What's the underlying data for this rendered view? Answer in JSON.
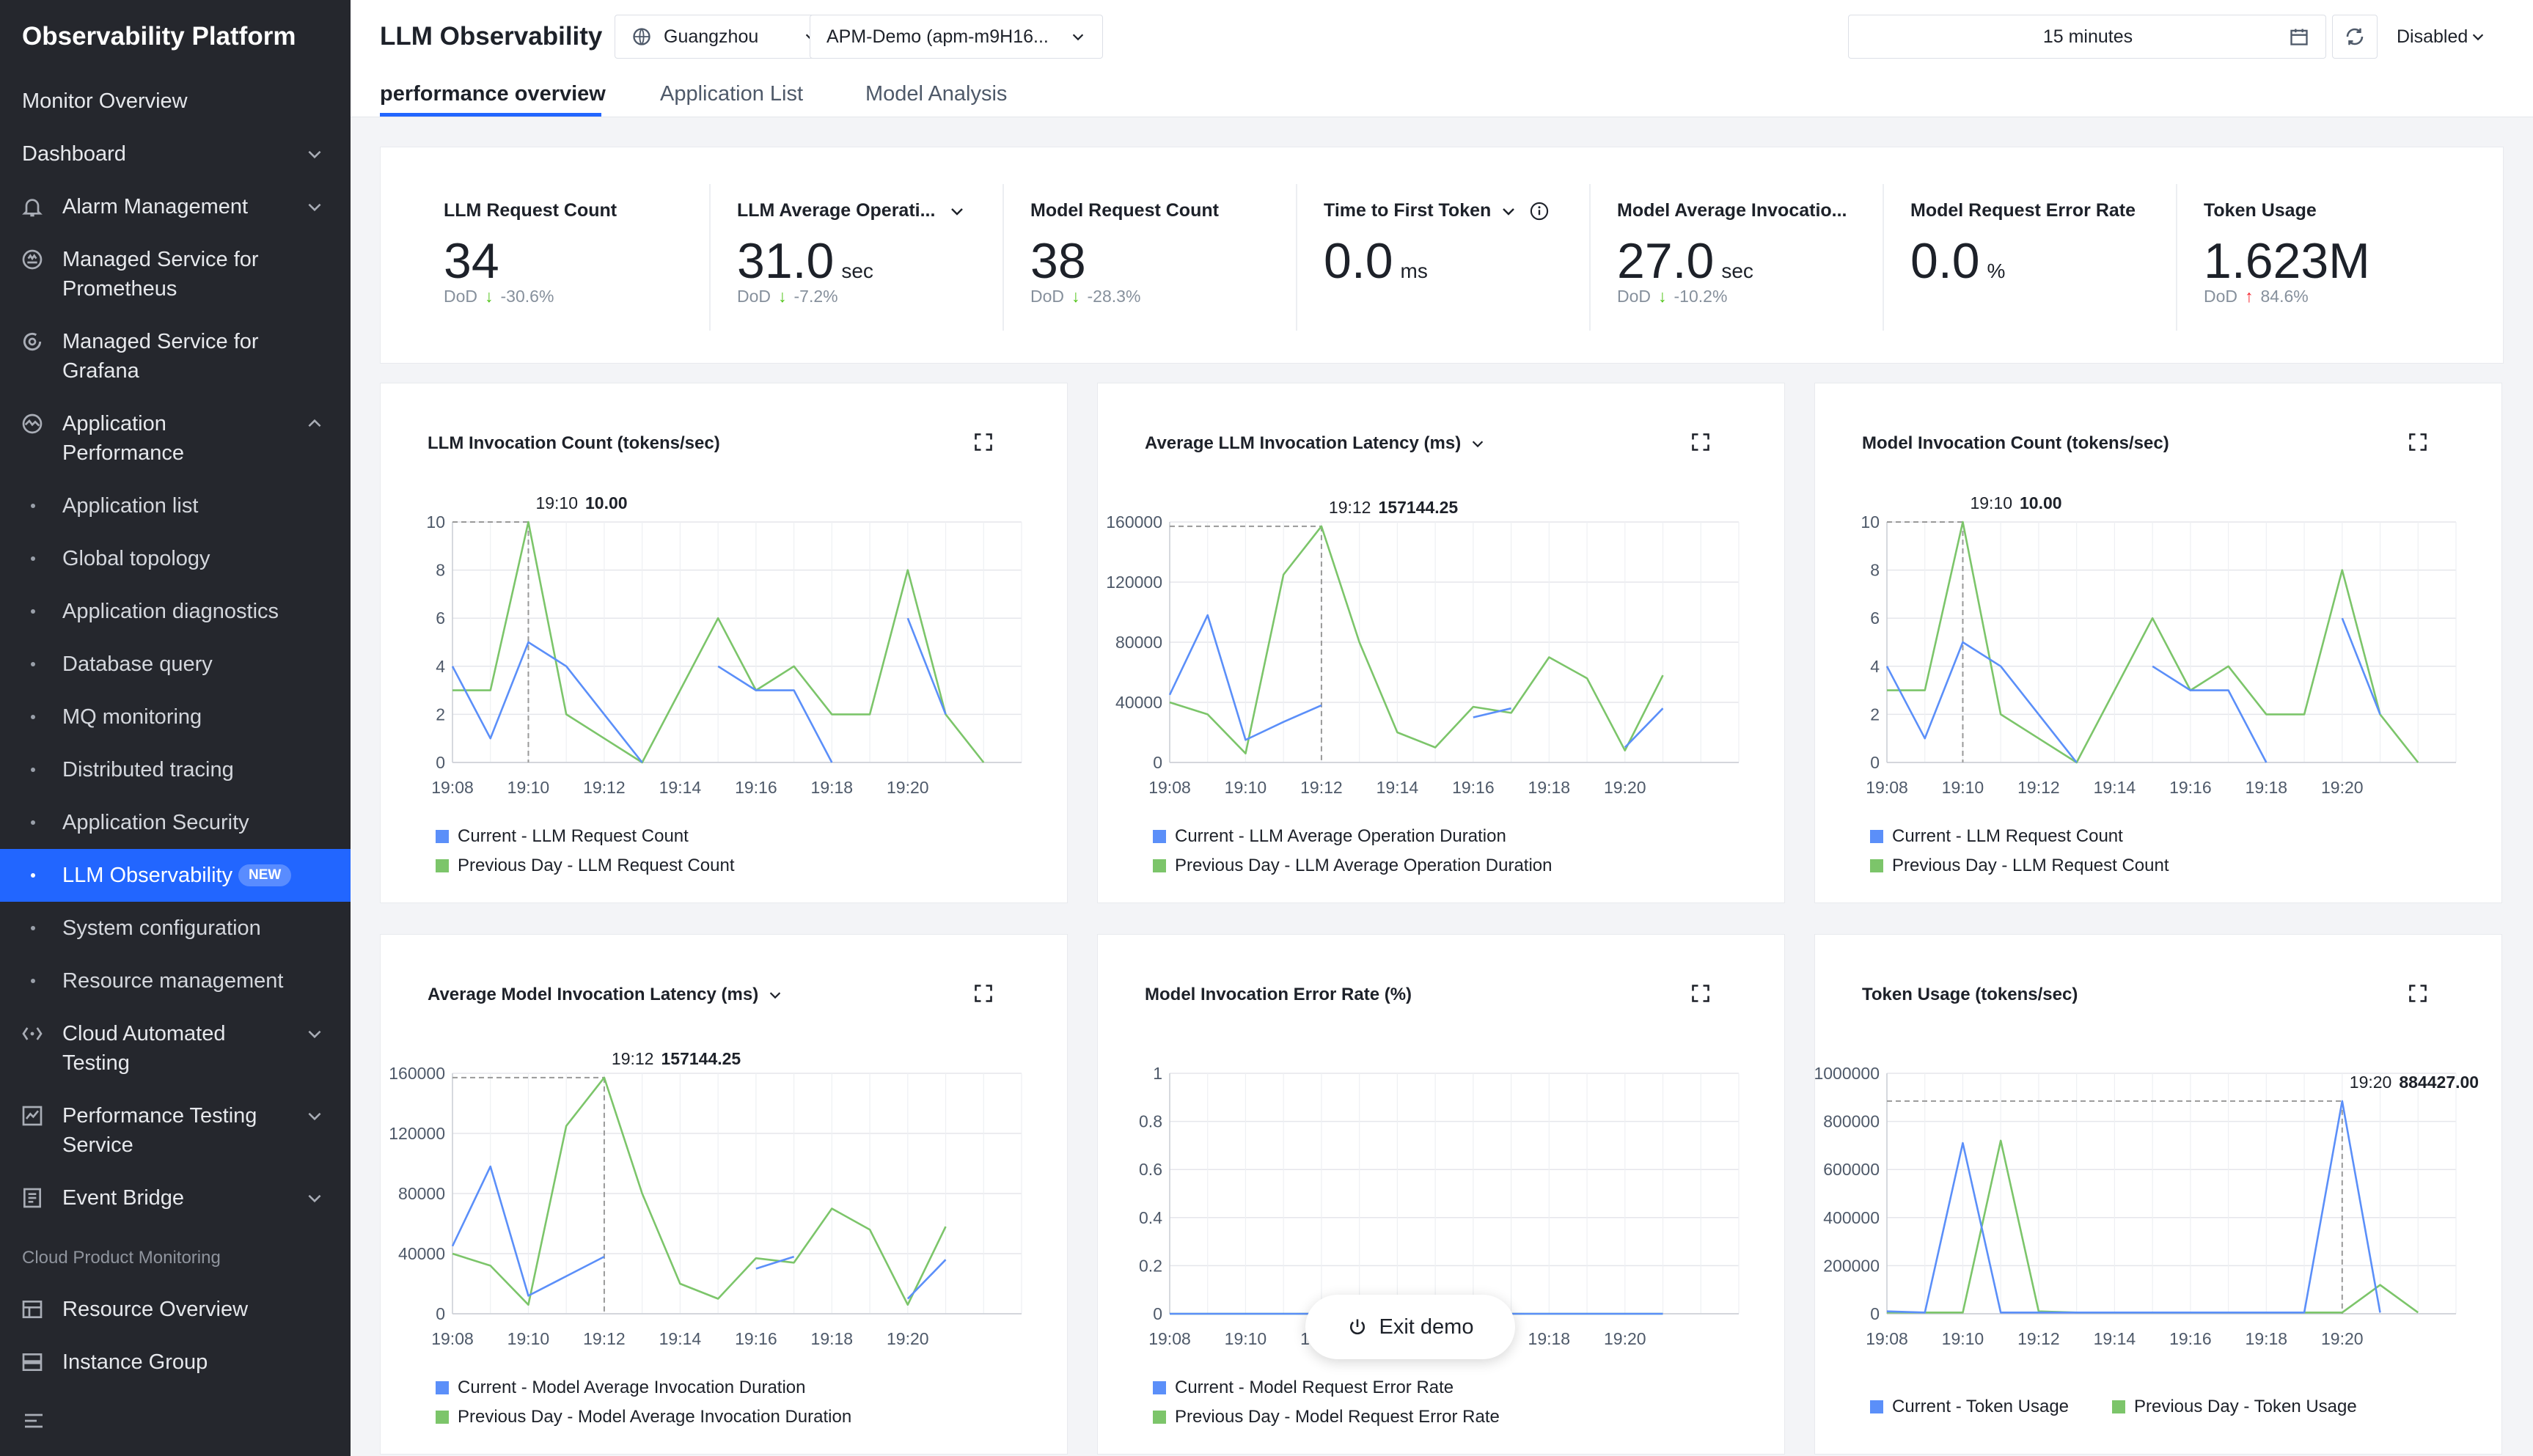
{
  "sidebar": {
    "brand": "Observability Platform",
    "items": [
      {
        "label": "Monitor Overview"
      },
      {
        "label": "Dashboard"
      },
      {
        "label": "Alarm Management"
      },
      {
        "label": "Managed Service for",
        "label2": "Prometheus"
      },
      {
        "label": "Managed Service for",
        "label2": "Grafana"
      },
      {
        "label": "Application",
        "label2": "Performance"
      }
    ],
    "sub_items": [
      {
        "label": "Application list"
      },
      {
        "label": "Global topology"
      },
      {
        "label": "Application diagnostics"
      },
      {
        "label": "Database query"
      },
      {
        "label": "MQ monitoring"
      },
      {
        "label": "Distributed tracing"
      },
      {
        "label": "Application Security"
      },
      {
        "label": "LLM Observability",
        "badge": "NEW"
      },
      {
        "label": "System configuration"
      },
      {
        "label": "Resource management"
      }
    ],
    "lower_items": [
      {
        "label": "Cloud Automated",
        "label2": "Testing"
      },
      {
        "label": "Performance Testing",
        "label2": "Service"
      },
      {
        "label": "Event Bridge"
      }
    ],
    "section_label": "Cloud Product Monitoring",
    "monitoring_items": [
      {
        "label": "Resource Overview"
      },
      {
        "label": "Instance Group"
      }
    ]
  },
  "header": {
    "title": "LLM Observability",
    "region": "Guangzhou",
    "app": "APM-Demo (apm-m9H16...",
    "time_range": "15 minutes",
    "refresh_mode": "Disabled"
  },
  "tabs": [
    {
      "label": "performance overview"
    },
    {
      "label": "Application List"
    },
    {
      "label": "Model Analysis"
    }
  ],
  "kpis": [
    {
      "label": "LLM Request Count",
      "value": "34",
      "unit": "",
      "dod_label": "DoD",
      "dod": "-30.6%",
      "trend": "down"
    },
    {
      "label": "LLM Average Operati...",
      "value": "31.0",
      "unit": "sec",
      "dod_label": "DoD",
      "dod": "-7.2%",
      "trend": "down"
    },
    {
      "label": "Model Request Count",
      "value": "38",
      "unit": "",
      "dod_label": "DoD",
      "dod": "-28.3%",
      "trend": "down"
    },
    {
      "label": "Time to First Token",
      "value": "0.0",
      "unit": "ms",
      "dod_label": "",
      "dod": "",
      "trend": ""
    },
    {
      "label": "Model Average Invocatio...",
      "value": "27.0",
      "unit": "sec",
      "dod_label": "DoD",
      "dod": "-10.2%",
      "trend": "down"
    },
    {
      "label": "Model Request Error Rate",
      "value": "0.0",
      "unit": "%",
      "dod_label": "",
      "dod": "",
      "trend": ""
    },
    {
      "label": "Token Usage",
      "value": "1.623M",
      "unit": "",
      "dod_label": "DoD",
      "dod": "84.6%",
      "trend": "up"
    }
  ],
  "colors": {
    "accent": "#2266ff",
    "current": "#5b8ff9",
    "previous": "#7cc56a",
    "down": "#52c41a",
    "up": "#f5222d"
  },
  "exit_demo": "Exit demo",
  "chart_data": [
    {
      "type": "line",
      "title": "LLM Invocation Count (tokens/sec)",
      "x": [
        "19:08",
        "19:09",
        "19:10",
        "19:11",
        "19:12",
        "19:13",
        "19:14",
        "19:15",
        "19:16",
        "19:17",
        "19:18",
        "19:19",
        "19:20",
        "19:21",
        "19:22"
      ],
      "x_ticks": [
        "19:08",
        "19:10",
        "19:12",
        "19:14",
        "19:16",
        "19:18",
        "19:20"
      ],
      "y_ticks": [
        "0",
        "2",
        "4",
        "6",
        "8",
        "10"
      ],
      "ylim": [
        0,
        10
      ],
      "series": [
        {
          "name": "Current - LLM Request Count",
          "values": [
            4,
            1,
            5,
            4,
            2,
            0,
            null,
            4,
            3,
            3,
            0,
            null,
            6,
            2,
            null
          ]
        },
        {
          "name": "Previous Day - LLM Request Count",
          "values": [
            3,
            3,
            10,
            2,
            1,
            0,
            3,
            6,
            3,
            4,
            2,
            2,
            8,
            2,
            0
          ]
        }
      ],
      "tooltip": {
        "x": "19:10",
        "value": "10.00"
      }
    },
    {
      "type": "line",
      "title": "Average LLM Invocation Latency (ms)",
      "x": [
        "19:08",
        "19:09",
        "19:10",
        "19:11",
        "19:12",
        "19:13",
        "19:14",
        "19:15",
        "19:16",
        "19:17",
        "19:18",
        "19:19",
        "19:20",
        "19:21",
        "19:22"
      ],
      "x_ticks": [
        "19:08",
        "19:10",
        "19:12",
        "19:14",
        "19:16",
        "19:18",
        "19:20"
      ],
      "y_ticks": [
        "0",
        "40000",
        "80000",
        "120000",
        "160000"
      ],
      "ylim": [
        0,
        160000
      ],
      "series": [
        {
          "name": "Current - LLM Average Operation Duration",
          "values": [
            45000,
            98000,
            15000,
            27000,
            38000,
            null,
            null,
            null,
            30000,
            36000,
            null,
            null,
            10000,
            36000,
            null
          ]
        },
        {
          "name": "Previous Day - LLM Average Operation Duration",
          "values": [
            40000,
            32000,
            6000,
            125000,
            157144.25,
            80000,
            20000,
            10000,
            37000,
            33000,
            70000,
            56000,
            8000,
            58000,
            null
          ]
        }
      ],
      "tooltip": {
        "x": "19:12",
        "value": "157144.25"
      }
    },
    {
      "type": "line",
      "title": "Model Invocation Count (tokens/sec)",
      "x": [
        "19:08",
        "19:09",
        "19:10",
        "19:11",
        "19:12",
        "19:13",
        "19:14",
        "19:15",
        "19:16",
        "19:17",
        "19:18",
        "19:19",
        "19:20",
        "19:21",
        "19:22"
      ],
      "x_ticks": [
        "19:08",
        "19:10",
        "19:12",
        "19:14",
        "19:16",
        "19:18",
        "19:20"
      ],
      "y_ticks": [
        "0",
        "2",
        "4",
        "6",
        "8",
        "10"
      ],
      "ylim": [
        0,
        10
      ],
      "series": [
        {
          "name": "Current - LLM Request Count",
          "values": [
            4,
            1,
            5,
            4,
            2,
            0,
            null,
            4,
            3,
            3,
            0,
            null,
            6,
            2,
            null
          ]
        },
        {
          "name": "Previous Day - LLM Request Count",
          "values": [
            3,
            3,
            10,
            2,
            1,
            0,
            3,
            6,
            3,
            4,
            2,
            2,
            8,
            2,
            0
          ]
        }
      ],
      "tooltip": {
        "x": "19:10",
        "value": "10.00"
      }
    },
    {
      "type": "line",
      "title": "Average Model Invocation Latency (ms)",
      "x": [
        "19:08",
        "19:09",
        "19:10",
        "19:11",
        "19:12",
        "19:13",
        "19:14",
        "19:15",
        "19:16",
        "19:17",
        "19:18",
        "19:19",
        "19:20",
        "19:21",
        "19:22"
      ],
      "x_ticks": [
        "19:08",
        "19:10",
        "19:12",
        "19:14",
        "19:16",
        "19:18",
        "19:20"
      ],
      "y_ticks": [
        "0",
        "40000",
        "80000",
        "120000",
        "160000"
      ],
      "ylim": [
        0,
        160000
      ],
      "series": [
        {
          "name": "Current - Model Average Invocation Duration",
          "values": [
            45000,
            98000,
            12000,
            25000,
            38000,
            null,
            null,
            null,
            30000,
            38000,
            null,
            null,
            10000,
            36000,
            null
          ]
        },
        {
          "name": "Previous Day - Model Average Invocation Duration",
          "values": [
            40000,
            32000,
            6000,
            125000,
            157144.25,
            80000,
            20000,
            10000,
            37000,
            34000,
            70000,
            56000,
            6000,
            58000,
            null
          ]
        }
      ],
      "tooltip": {
        "x": "19:12",
        "value": "157144.25"
      }
    },
    {
      "type": "line",
      "title": "Model Invocation Error Rate (%)",
      "x": [
        "19:08",
        "19:09",
        "19:10",
        "19:11",
        "19:12",
        "19:13",
        "19:14",
        "19:15",
        "19:16",
        "19:17",
        "19:18",
        "19:19",
        "19:20",
        "19:21"
      ],
      "x_ticks": [
        "19:08",
        "19:10",
        "19:12",
        "19:14",
        "19:16",
        "19:18",
        "19:20"
      ],
      "y_ticks": [
        "0",
        "0.2",
        "0.4",
        "0.6",
        "0.8",
        "1"
      ],
      "ylim": [
        0,
        1
      ],
      "series": [
        {
          "name": "Current - Model Request Error Rate",
          "values": [
            0,
            0,
            0,
            0,
            0,
            0,
            0,
            0,
            0,
            0,
            0,
            0,
            0,
            0
          ]
        },
        {
          "name": "Previous Day - Model Request Error Rate",
          "values": [
            0,
            0,
            0,
            0,
            0,
            0,
            0,
            0,
            0,
            0,
            0,
            0,
            0,
            0
          ]
        }
      ]
    },
    {
      "type": "line",
      "title": "Token Usage (tokens/sec)",
      "x": [
        "19:08",
        "19:09",
        "19:10",
        "19:11",
        "19:12",
        "19:13",
        "19:14",
        "19:15",
        "19:16",
        "19:17",
        "19:18",
        "19:19",
        "19:20",
        "19:21",
        "19:22"
      ],
      "x_ticks": [
        "19:08",
        "19:10",
        "19:12",
        "19:14",
        "19:16",
        "19:18",
        "19:20"
      ],
      "y_ticks": [
        "0",
        "200000",
        "400000",
        "600000",
        "800000",
        "1000000"
      ],
      "ylim": [
        0,
        1000000
      ],
      "series": [
        {
          "name": "Current - Token Usage",
          "values": [
            10000,
            5000,
            710000,
            5000,
            5000,
            5000,
            5000,
            5000,
            5000,
            5000,
            5000,
            5000,
            884427,
            5000,
            null
          ]
        },
        {
          "name": "Previous Day - Token Usage",
          "values": [
            5000,
            5000,
            5000,
            720000,
            10000,
            5000,
            5000,
            5000,
            5000,
            5000,
            5000,
            5000,
            5000,
            120000,
            5000
          ]
        }
      ],
      "tooltip": {
        "x": "19:20",
        "value": "884427.00"
      }
    }
  ]
}
